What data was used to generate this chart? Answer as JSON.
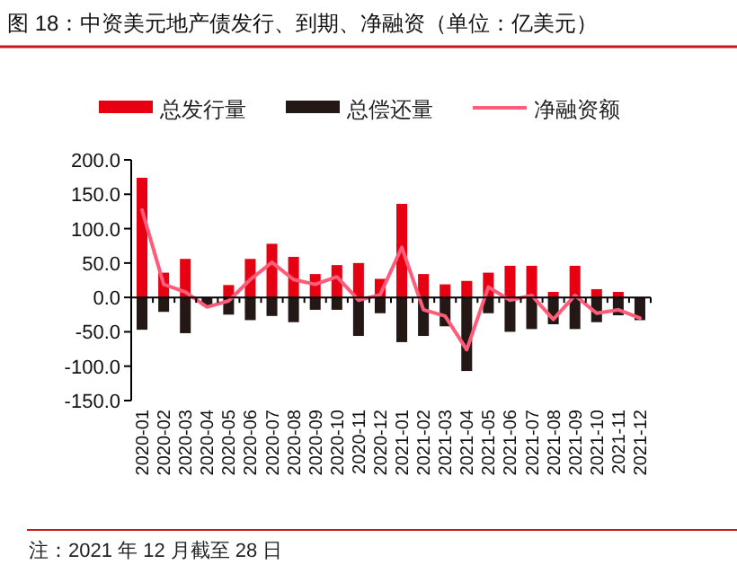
{
  "chart_data": {
    "type": "bar",
    "title": "图 18：中资美元地产债发行、到期、净融资（单位：亿美元）",
    "categories": [
      "2020-01",
      "2020-02",
      "2020-03",
      "2020-04",
      "2020-05",
      "2020-06",
      "2020-07",
      "2020-08",
      "2020-09",
      "2020-10",
      "2020-11",
      "2020-12",
      "2021-01",
      "2021-02",
      "2021-03",
      "2021-04",
      "2021-05",
      "2021-06",
      "2021-07",
      "2021-08",
      "2021-09",
      "2021-10",
      "2021-11",
      "2021-12"
    ],
    "series": [
      {
        "name": "总发行量",
        "color": "#e60012",
        "values": [
          174,
          36,
          56,
          0,
          18,
          56,
          78,
          59,
          34,
          47,
          50,
          27,
          136,
          34,
          19,
          24,
          36,
          46,
          46,
          8,
          46,
          12,
          8,
          0
        ]
      },
      {
        "name": "总偿还量",
        "color": "#231815",
        "values": [
          -47,
          -21,
          -52,
          -12,
          -25,
          -33,
          -27,
          -36,
          -18,
          -18,
          -56,
          -23,
          -65,
          -56,
          -42,
          -107,
          -23,
          -50,
          -46,
          -39,
          -46,
          -36,
          -26,
          -33
        ]
      },
      {
        "name": "净融资额",
        "type": "line",
        "color": "#ff5c7a",
        "values": [
          127,
          19,
          8,
          -14,
          -5,
          26,
          51,
          26,
          19,
          30,
          -4,
          4,
          73,
          -18,
          -27,
          -76,
          15,
          -4,
          3,
          -32,
          3,
          -23,
          -18,
          -30
        ]
      }
    ],
    "ylim": [
      -150,
      200
    ],
    "yticks": [
      {
        "value": -150,
        "label": "-150.0"
      },
      {
        "value": -100,
        "label": "-100.0"
      },
      {
        "value": -50,
        "label": "-50.0"
      },
      {
        "value": 0,
        "label": "0.0"
      },
      {
        "value": 50,
        "label": "50.0"
      },
      {
        "value": 100,
        "label": "100.0"
      },
      {
        "value": 150,
        "label": "150.0"
      },
      {
        "value": 200,
        "label": "200.0"
      }
    ],
    "legend": "top",
    "stacked": true,
    "annotations": [
      "注：2021 年 12 月截至 28 日"
    ]
  }
}
